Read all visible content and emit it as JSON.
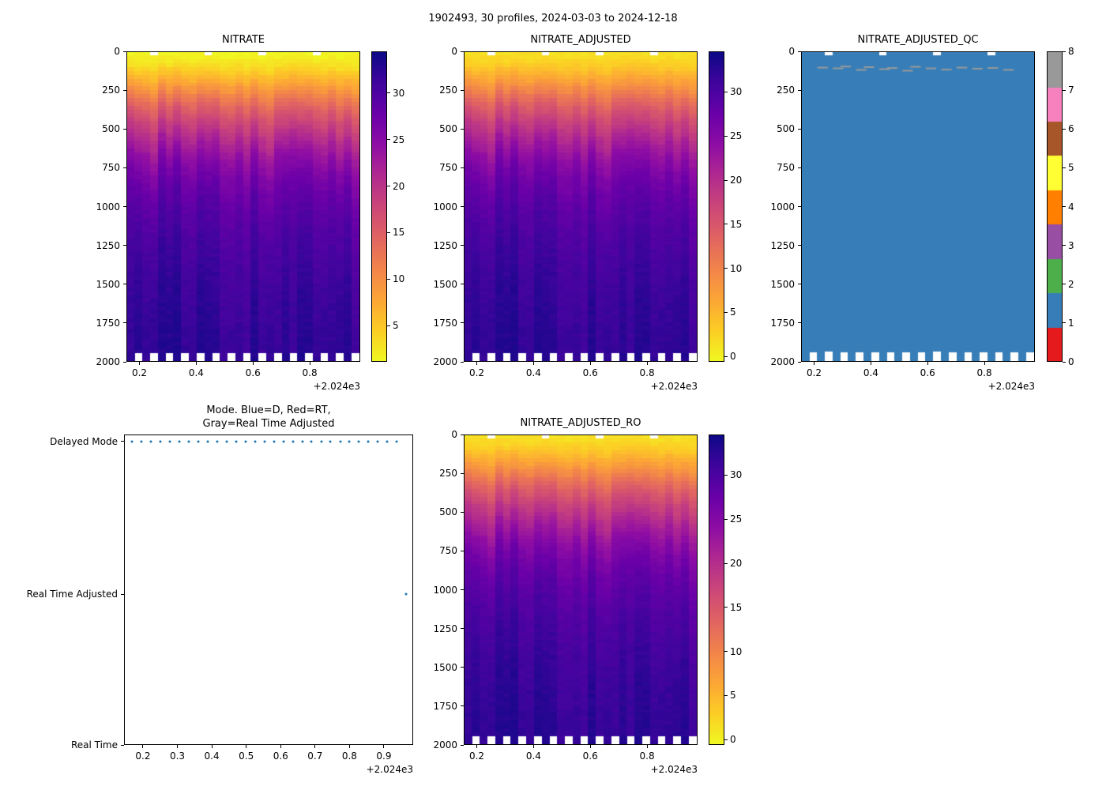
{
  "figure_title": "1902493, 30 profiles, 2024-03-03 to 2024-12-18",
  "x_offset_label": "+2.024e3",
  "panels": {
    "nitrate": {
      "title": "NITRATE"
    },
    "nitrate_adjusted": {
      "title": "NITRATE_ADJUSTED"
    },
    "nitrate_adjusted_qc": {
      "title": "NITRATE_ADJUSTED_QC"
    },
    "mode": {
      "title_line1": "Mode. Blue=D, Red=RT,",
      "title_line2": "Gray=Real Time Adjusted"
    },
    "nitrate_adjusted_ro": {
      "title": "NITRATE_ADJUSTED_RO"
    }
  },
  "axes_text": {
    "depth_ticks": [
      0,
      250,
      500,
      750,
      1000,
      1250,
      1500,
      1750,
      2000
    ],
    "heatmap_xticks": [
      0.2,
      0.4,
      0.6,
      0.8
    ],
    "mode_xticks": [
      0.2,
      0.3,
      0.4,
      0.5,
      0.6,
      0.7,
      0.8,
      0.9
    ],
    "mode_yticklabels": [
      "Delayed Mode",
      "Real Time Adjusted",
      "Real Time"
    ]
  },
  "colorbars": {
    "nitrate": {
      "ticks": [
        5,
        10,
        15,
        20,
        25,
        30
      ],
      "vmin": 1.1,
      "vmax": 34.5
    },
    "nitrate_adjusted": {
      "ticks": [
        0,
        5,
        10,
        15,
        20,
        25,
        30
      ],
      "vmin": -0.6,
      "vmax": 34.6
    },
    "nitrate_adjusted_ro": {
      "ticks": [
        0,
        5,
        10,
        15,
        20,
        25,
        30
      ],
      "vmin": -0.6,
      "vmax": 34.6
    },
    "qc": {
      "ticks": [
        0,
        1,
        2,
        3,
        4,
        5,
        6,
        7,
        8
      ],
      "palette": [
        "#e41a1c",
        "#377eb8",
        "#4daf4a",
        "#984ea3",
        "#ff7f00",
        "#ffff33",
        "#a65628",
        "#f781bf",
        "#999999"
      ]
    }
  },
  "colors": {
    "marker_blue": "#1f77b4",
    "qc_base": "#377eb8",
    "qc_anomaly": "#999999",
    "plasma_stops": [
      [
        0.0,
        "#0d0887"
      ],
      [
        0.1,
        "#41049d"
      ],
      [
        0.2,
        "#6a00a8"
      ],
      [
        0.3,
        "#8f0da4"
      ],
      [
        0.4,
        "#b12a90"
      ],
      [
        0.5,
        "#cc4778"
      ],
      [
        0.6,
        "#e16462"
      ],
      [
        0.7,
        "#f2844b"
      ],
      [
        0.8,
        "#fca636"
      ],
      [
        0.9,
        "#fcce25"
      ],
      [
        1.0,
        "#f0f921"
      ]
    ]
  },
  "chart_data": {
    "n_profiles": 30,
    "x_time_plus_2024": [
      0.168,
      0.195,
      0.223,
      0.25,
      0.278,
      0.305,
      0.333,
      0.36,
      0.388,
      0.415,
      0.443,
      0.47,
      0.498,
      0.525,
      0.553,
      0.58,
      0.608,
      0.635,
      0.663,
      0.69,
      0.718,
      0.745,
      0.773,
      0.8,
      0.827,
      0.855,
      0.882,
      0.91,
      0.937,
      0.964
    ],
    "depth_range_m": [
      0,
      2000
    ],
    "depth_bin_m": 25,
    "nitrate_mean_profile": {
      "depth_m": [
        0,
        50,
        100,
        150,
        200,
        250,
        300,
        350,
        400,
        450,
        500,
        600,
        700,
        800,
        900,
        1000,
        1100,
        1250,
        1500,
        1750,
        2000
      ],
      "value_umol_kg": [
        1.2,
        2.0,
        3.5,
        5.5,
        7.5,
        9.5,
        12.0,
        14.0,
        16.0,
        17.5,
        19.0,
        22.0,
        24.5,
        26.5,
        27.8,
        28.8,
        29.5,
        30.4,
        31.4,
        32.0,
        32.4
      ]
    },
    "heatmap_panels": [
      {
        "type": "heatmap",
        "title": "NITRATE",
        "colormap": "plasma_r",
        "vmin": 1.1,
        "vmax": 34.5,
        "colorbar_ticks": [
          5,
          10,
          15,
          20,
          25,
          30
        ]
      },
      {
        "type": "heatmap",
        "title": "NITRATE_ADJUSTED",
        "colormap": "plasma_r",
        "vmin": -0.6,
        "vmax": 34.6,
        "colorbar_ticks": [
          0,
          5,
          10,
          15,
          20,
          25,
          30
        ]
      },
      {
        "type": "heatmap",
        "title": "NITRATE_ADJUSTED_RO",
        "colormap": "plasma_r",
        "vmin": -0.6,
        "vmax": 34.6,
        "colorbar_ticks": [
          0,
          5,
          10,
          15,
          20,
          25,
          30
        ]
      }
    ],
    "qc_panel": {
      "type": "heatmap",
      "title": "NITRATE_ADJUSTED_QC",
      "base_value": 1,
      "value_range": [
        0,
        8
      ],
      "anomalies": [
        {
          "profile_index": 2,
          "depth_m": 95,
          "value": 8
        },
        {
          "profile_index": 4,
          "depth_m": 100,
          "value": 8
        },
        {
          "profile_index": 5,
          "depth_m": 88,
          "value": 8
        },
        {
          "profile_index": 7,
          "depth_m": 110,
          "value": 8
        },
        {
          "profile_index": 8,
          "depth_m": 92,
          "value": 8
        },
        {
          "profile_index": 10,
          "depth_m": 105,
          "value": 8
        },
        {
          "profile_index": 11,
          "depth_m": 98,
          "value": 8
        },
        {
          "profile_index": 13,
          "depth_m": 115,
          "value": 8
        },
        {
          "profile_index": 14,
          "depth_m": 90,
          "value": 8
        },
        {
          "profile_index": 16,
          "depth_m": 100,
          "value": 8
        },
        {
          "profile_index": 18,
          "depth_m": 108,
          "value": 8
        },
        {
          "profile_index": 20,
          "depth_m": 95,
          "value": 8
        },
        {
          "profile_index": 22,
          "depth_m": 102,
          "value": 8
        },
        {
          "profile_index": 24,
          "depth_m": 97,
          "value": 8
        },
        {
          "profile_index": 26,
          "depth_m": 110,
          "value": 8
        }
      ]
    },
    "mode_panel": {
      "type": "scatter",
      "categories": [
        "Real Time",
        "Real Time Adjusted",
        "Delayed Mode"
      ],
      "delayed_mode_x": [
        0.168,
        0.195,
        0.223,
        0.25,
        0.278,
        0.305,
        0.333,
        0.36,
        0.388,
        0.415,
        0.443,
        0.47,
        0.498,
        0.525,
        0.553,
        0.58,
        0.608,
        0.635,
        0.663,
        0.69,
        0.718,
        0.745,
        0.773,
        0.8,
        0.827,
        0.855,
        0.882,
        0.91,
        0.937
      ],
      "real_time_adjusted_x": [
        0.964
      ],
      "real_time_x": []
    },
    "missing_data": {
      "bottom_gap_profile_indices": [
        1,
        3,
        5,
        7,
        9,
        11,
        13,
        15,
        17,
        19,
        21,
        23,
        25,
        27,
        29
      ],
      "bottom_gap_below_depth_m": 1940,
      "top_gap_profile_indices": [
        3,
        10,
        17,
        24
      ],
      "top_gap_above_depth_m": 25
    }
  }
}
